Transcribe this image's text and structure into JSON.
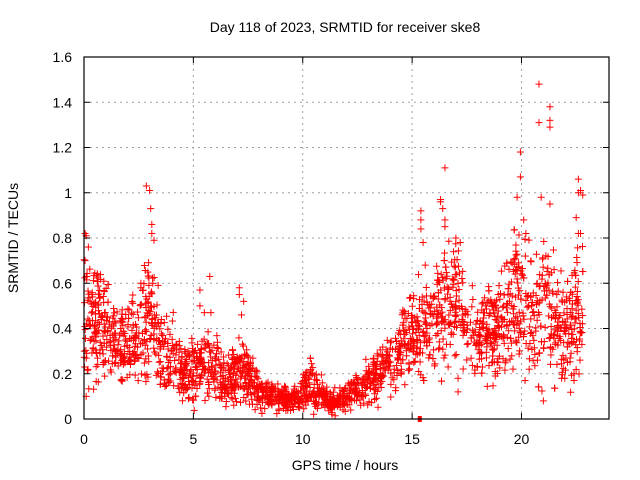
{
  "chart_data": {
    "type": "scatter",
    "title": "Day 118 of 2023, SRMTID for receiver ske8",
    "xlabel": "GPS time / hours",
    "ylabel": "SRMTID / TECUs",
    "xlim": [
      0,
      24
    ],
    "ylim": [
      0,
      1.6
    ],
    "xticks": [
      0,
      5,
      10,
      15,
      20
    ],
    "xtick_labels": [
      "0",
      "5",
      "10",
      "15",
      "20"
    ],
    "yticks": [
      0,
      0.2,
      0.4,
      0.6,
      0.8,
      1.0,
      1.2,
      1.4,
      1.6
    ],
    "ytick_labels": [
      "0",
      "0.2",
      "0.4",
      "0.6",
      "0.8",
      "1",
      "1.2",
      "1.4",
      "1.6"
    ],
    "grid": true,
    "marker": "plus",
    "color": "#ff0000",
    "series": [
      {
        "name": "SRMTID",
        "profile_note": "dense scatter summarised by hourly median and spread (TECU)",
        "profile": [
          {
            "hour": 0.0,
            "median": 0.45,
            "spread": 0.18
          },
          {
            "hour": 0.5,
            "median": 0.42,
            "spread": 0.15
          },
          {
            "hour": 1.0,
            "median": 0.38,
            "spread": 0.13
          },
          {
            "hour": 1.5,
            "median": 0.33,
            "spread": 0.12
          },
          {
            "hour": 2.0,
            "median": 0.33,
            "spread": 0.12
          },
          {
            "hour": 2.5,
            "median": 0.36,
            "spread": 0.14
          },
          {
            "hour": 3.0,
            "median": 0.45,
            "spread": 0.18
          },
          {
            "hour": 3.5,
            "median": 0.32,
            "spread": 0.12
          },
          {
            "hour": 4.0,
            "median": 0.3,
            "spread": 0.11
          },
          {
            "hour": 4.5,
            "median": 0.2,
            "spread": 0.07
          },
          {
            "hour": 5.0,
            "median": 0.22,
            "spread": 0.09
          },
          {
            "hour": 5.5,
            "median": 0.24,
            "spread": 0.1
          },
          {
            "hour": 6.0,
            "median": 0.22,
            "spread": 0.09
          },
          {
            "hour": 6.5,
            "median": 0.15,
            "spread": 0.06
          },
          {
            "hour": 7.0,
            "median": 0.22,
            "spread": 0.1
          },
          {
            "hour": 7.5,
            "median": 0.2,
            "spread": 0.08
          },
          {
            "hour": 8.0,
            "median": 0.12,
            "spread": 0.04
          },
          {
            "hour": 8.5,
            "median": 0.11,
            "spread": 0.04
          },
          {
            "hour": 9.0,
            "median": 0.1,
            "spread": 0.04
          },
          {
            "hour": 9.5,
            "median": 0.08,
            "spread": 0.035
          },
          {
            "hour": 10.0,
            "median": 0.13,
            "spread": 0.05
          },
          {
            "hour": 10.5,
            "median": 0.15,
            "spread": 0.06
          },
          {
            "hour": 11.0,
            "median": 0.1,
            "spread": 0.04
          },
          {
            "hour": 11.5,
            "median": 0.07,
            "spread": 0.03
          },
          {
            "hour": 12.0,
            "median": 0.1,
            "spread": 0.04
          },
          {
            "hour": 12.5,
            "median": 0.14,
            "spread": 0.05
          },
          {
            "hour": 13.0,
            "median": 0.16,
            "spread": 0.06
          },
          {
            "hour": 13.5,
            "median": 0.2,
            "spread": 0.07
          },
          {
            "hour": 14.0,
            "median": 0.25,
            "spread": 0.08
          },
          {
            "hour": 14.5,
            "median": 0.3,
            "spread": 0.09
          },
          {
            "hour": 15.0,
            "median": 0.38,
            "spread": 0.11
          },
          {
            "hour": 15.5,
            "median": 0.4,
            "spread": 0.12
          },
          {
            "hour": 16.0,
            "median": 0.45,
            "spread": 0.13
          },
          {
            "hour": 16.5,
            "median": 0.48,
            "spread": 0.15
          },
          {
            "hour": 17.0,
            "median": 0.55,
            "spread": 0.15
          },
          {
            "hour": 17.5,
            "median": 0.42,
            "spread": 0.12
          },
          {
            "hour": 18.0,
            "median": 0.35,
            "spread": 0.1
          },
          {
            "hour": 18.5,
            "median": 0.38,
            "spread": 0.12
          },
          {
            "hour": 19.0,
            "median": 0.42,
            "spread": 0.14
          },
          {
            "hour": 19.5,
            "median": 0.5,
            "spread": 0.17
          },
          {
            "hour": 20.0,
            "median": 0.55,
            "spread": 0.2
          },
          {
            "hour": 20.5,
            "median": 0.45,
            "spread": 0.18
          },
          {
            "hour": 21.0,
            "median": 0.55,
            "spread": 0.22
          },
          {
            "hour": 21.5,
            "median": 0.45,
            "spread": 0.18
          },
          {
            "hour": 22.0,
            "median": 0.35,
            "spread": 0.13
          },
          {
            "hour": 22.5,
            "median": 0.5,
            "spread": 0.2
          },
          {
            "hour": 22.8,
            "median": 0.45,
            "spread": 0.18
          }
        ],
        "points_per_hour": 110,
        "end_hour": 22.8,
        "notable_points": [
          [
            0.05,
            0.82
          ],
          [
            0.1,
            0.81
          ],
          [
            0.05,
            0.7
          ],
          [
            0.1,
            0.1
          ],
          [
            0.2,
            0.76
          ],
          [
            2.85,
            1.03
          ],
          [
            3.0,
            1.01
          ],
          [
            3.05,
            0.93
          ],
          [
            3.1,
            0.86
          ],
          [
            3.1,
            0.82
          ],
          [
            3.2,
            0.79
          ],
          [
            2.6,
            0.6
          ],
          [
            2.6,
            0.58
          ],
          [
            5.3,
            0.57
          ],
          [
            5.3,
            0.5
          ],
          [
            5.5,
            0.47
          ],
          [
            5.75,
            0.63
          ],
          [
            5.8,
            0.47
          ],
          [
            7.1,
            0.58
          ],
          [
            7.1,
            0.55
          ],
          [
            7.3,
            0.52
          ],
          [
            7.2,
            0.46
          ],
          [
            15.4,
            0.92
          ],
          [
            15.4,
            0.88
          ],
          [
            15.4,
            0.84
          ],
          [
            15.5,
            0.78
          ],
          [
            15.6,
            0.68
          ],
          [
            16.3,
            0.97
          ],
          [
            16.3,
            0.96
          ],
          [
            16.4,
            0.93
          ],
          [
            16.5,
            0.88
          ],
          [
            16.5,
            0.85
          ],
          [
            16.5,
            1.11
          ],
          [
            17.0,
            0.8
          ],
          [
            17.2,
            0.78
          ],
          [
            17.1,
            0.18
          ],
          [
            17.1,
            0.12
          ],
          [
            18.4,
            0.27
          ],
          [
            18.8,
            0.21
          ],
          [
            18.8,
            0.19
          ],
          [
            19.8,
            0.98
          ],
          [
            19.95,
            1.18
          ],
          [
            19.95,
            1.07
          ],
          [
            20.1,
            0.88
          ],
          [
            20.2,
            0.82
          ],
          [
            20.8,
            1.48
          ],
          [
            20.8,
            1.31
          ],
          [
            21.3,
            1.38
          ],
          [
            21.3,
            1.32
          ],
          [
            21.3,
            1.29
          ],
          [
            20.9,
            0.98
          ],
          [
            21.3,
            0.95
          ],
          [
            22.6,
            1.0
          ],
          [
            22.7,
            1.01
          ],
          [
            22.6,
            1.06
          ],
          [
            22.8,
            0.99
          ],
          [
            22.5,
            0.89
          ],
          [
            22.6,
            0.82
          ],
          [
            22.7,
            0.82
          ],
          [
            22.1,
            0.25
          ],
          [
            21.0,
            0.08
          ],
          [
            22.4,
            0.2
          ],
          [
            22.4,
            0.17
          ]
        ],
        "zero_marker": [
          15.35,
          0.0
        ]
      }
    ]
  }
}
